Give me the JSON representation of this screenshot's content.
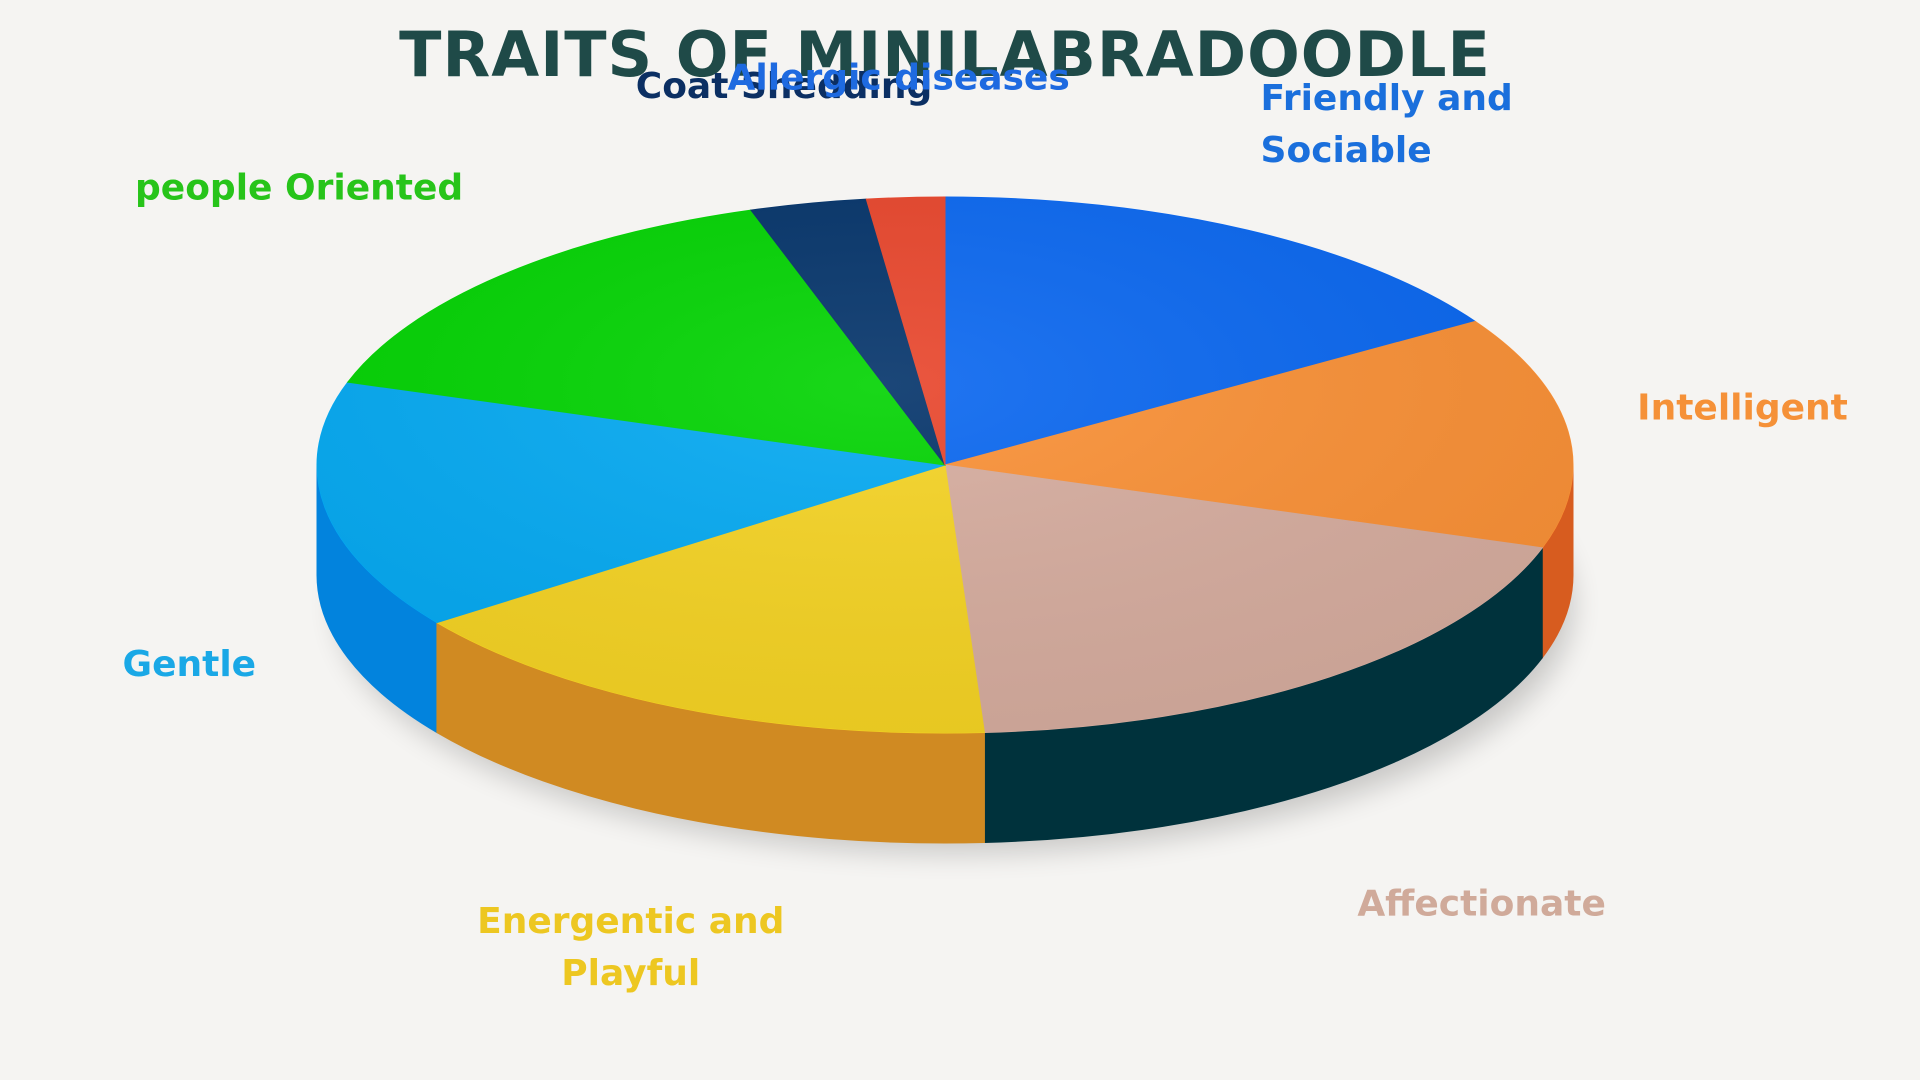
{
  "chart_data": {
    "type": "pie",
    "title": "TRAITS OF MINILABRADOODLE",
    "categories": [
      "Friendly and Sociable",
      "Intelligent",
      "Affectionate",
      "Energentic and Playful",
      "Gentle",
      "people Oriented",
      "Coat Shedding",
      "Allergic diseases"
    ],
    "values": [
      16,
      14,
      19,
      16,
      15,
      15,
      3,
      2
    ],
    "colors": [
      "#0866f0",
      "#fa9035",
      "#d6ac9e",
      "#f5d322",
      "#03a9f2",
      "#00d300",
      "#023269",
      "#e8442a"
    ],
    "side_colors": [
      "#0b52b8",
      "#d75c1f",
      "#00323c",
      "#d08a22",
      "#0283dd",
      "#00a400",
      "#021f45",
      "#b53317"
    ],
    "label_colors": [
      "#1a6fdc",
      "#f59138",
      "#d0aa9a",
      "#edc721",
      "#1aa8e6",
      "#27c41a",
      "#0b2f63",
      "#1e6ae0"
    ],
    "label_lines": [
      [
        "Friendly and",
        "Sociable"
      ],
      [
        "Intelligent"
      ],
      [
        "Affectionate"
      ],
      [
        "Energentic and",
        "Playful"
      ],
      [
        "Gentle"
      ],
      [
        "people Oriented"
      ],
      [
        "Coat Shedding"
      ],
      [
        "Allergic diseases"
      ]
    ],
    "style": "3d",
    "legend": "none (labels placed next to slices)"
  }
}
